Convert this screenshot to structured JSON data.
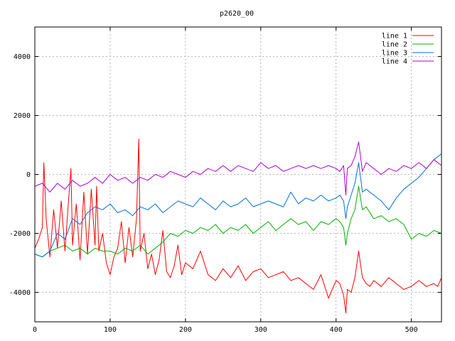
{
  "chart_data": {
    "type": "line",
    "title": "p2620_00",
    "xlabel": "",
    "ylabel": "",
    "xlim": [
      0,
      540
    ],
    "ylim": [
      -5000,
      5000
    ],
    "x_ticks": [
      0,
      100,
      200,
      300,
      400,
      500
    ],
    "y_ticks": [
      -4000,
      -2000,
      0,
      2000,
      4000
    ],
    "grid": true,
    "legend_position": "top-right",
    "series": [
      {
        "name": "line 1",
        "color": "#ff0000",
        "x": [
          0,
          5,
          10,
          12,
          15,
          20,
          25,
          30,
          35,
          40,
          45,
          48,
          50,
          55,
          60,
          65,
          70,
          75,
          80,
          82,
          85,
          90,
          95,
          100,
          105,
          110,
          115,
          120,
          125,
          130,
          135,
          138,
          140,
          145,
          150,
          155,
          160,
          165,
          170,
          175,
          180,
          185,
          190,
          195,
          200,
          210,
          220,
          230,
          240,
          250,
          260,
          270,
          280,
          290,
          300,
          310,
          320,
          330,
          340,
          350,
          360,
          370,
          380,
          390,
          400,
          405,
          410,
          413,
          415,
          420,
          425,
          430,
          435,
          440,
          445,
          450,
          460,
          470,
          480,
          490,
          500,
          510,
          520,
          530,
          535,
          540
        ],
        "y": [
          -2500,
          -2200,
          -1800,
          400,
          -1500,
          -2800,
          -1200,
          -2500,
          -900,
          -2600,
          -800,
          200,
          -2400,
          -1000,
          -2900,
          -600,
          -2700,
          -500,
          -2400,
          -400,
          -2600,
          -2000,
          -3000,
          -3400,
          -2800,
          -2500,
          -1600,
          -3000,
          -1800,
          -2800,
          -1500,
          1200,
          -2600,
          -2000,
          -3200,
          -2700,
          -3400,
          -2900,
          -1900,
          -3300,
          -3500,
          -3100,
          -2400,
          -3400,
          -3000,
          -3200,
          -2600,
          -3400,
          -3600,
          -3200,
          -3500,
          -3100,
          -3600,
          -3300,
          -3200,
          -3500,
          -3400,
          -3300,
          -3600,
          -3500,
          -3700,
          -3900,
          -3400,
          -4200,
          -3600,
          -3700,
          -4100,
          -4700,
          -3900,
          -4000,
          -3500,
          -2600,
          -3500,
          -3700,
          -3800,
          -3600,
          -3800,
          -3500,
          -3700,
          -3900,
          -3800,
          -3600,
          -3800,
          -3700,
          -3800,
          -3500
        ]
      },
      {
        "name": "line 2",
        "color": "#00b000",
        "x": [
          0,
          10,
          20,
          30,
          40,
          50,
          60,
          70,
          80,
          90,
          100,
          110,
          120,
          130,
          140,
          150,
          160,
          170,
          180,
          190,
          200,
          210,
          220,
          230,
          240,
          250,
          260,
          270,
          280,
          290,
          300,
          310,
          320,
          330,
          340,
          350,
          360,
          370,
          380,
          390,
          400,
          405,
          410,
          413,
          415,
          420,
          425,
          430,
          435,
          440,
          450,
          460,
          470,
          480,
          490,
          500,
          510,
          520,
          530,
          540
        ],
        "y": [
          -2700,
          -2800,
          -2600,
          -2500,
          -2400,
          -2600,
          -2500,
          -2700,
          -2500,
          -2600,
          -2600,
          -2700,
          -2500,
          -2600,
          -2400,
          -2700,
          -2500,
          -2300,
          -2000,
          -2100,
          -1900,
          -2000,
          -1800,
          -1900,
          -1700,
          -2000,
          -1800,
          -1900,
          -1700,
          -2000,
          -1800,
          -1600,
          -1900,
          -1700,
          -1500,
          -1700,
          -1600,
          -1900,
          -1600,
          -1700,
          -1500,
          -1600,
          -1800,
          -2400,
          -2000,
          -1500,
          -1200,
          -400,
          -1200,
          -1100,
          -1500,
          -1400,
          -1600,
          -1500,
          -1700,
          -2200,
          -2000,
          -2100,
          -1900,
          -2000
        ]
      },
      {
        "name": "line 3",
        "color": "#0070dd",
        "x": [
          0,
          10,
          20,
          30,
          40,
          50,
          60,
          70,
          80,
          90,
          100,
          110,
          120,
          130,
          140,
          150,
          160,
          170,
          180,
          190,
          200,
          210,
          220,
          230,
          240,
          250,
          260,
          270,
          280,
          290,
          300,
          310,
          320,
          330,
          340,
          350,
          360,
          370,
          380,
          390,
          400,
          405,
          410,
          413,
          415,
          420,
          425,
          430,
          435,
          440,
          450,
          460,
          470,
          480,
          490,
          500,
          510,
          520,
          530,
          540
        ],
        "y": [
          -2700,
          -2800,
          -2600,
          -2000,
          -2200,
          -1500,
          -1700,
          -1300,
          -1100,
          -1200,
          -1000,
          -1300,
          -1200,
          -1400,
          -1100,
          -1200,
          -1000,
          -1300,
          -1100,
          -900,
          -1000,
          -1100,
          -800,
          -1000,
          -1200,
          -900,
          -1100,
          -1000,
          -800,
          -1100,
          -1000,
          -900,
          -1000,
          -1100,
          -600,
          -1000,
          -800,
          -900,
          -700,
          -900,
          -800,
          -700,
          -900,
          -1500,
          -1100,
          -700,
          -300,
          400,
          -600,
          -500,
          -700,
          -900,
          -1200,
          -800,
          -500,
          -300,
          -100,
          200,
          500,
          700
        ]
      },
      {
        "name": "line 4",
        "color": "#b000d0",
        "x": [
          0,
          10,
          20,
          30,
          40,
          50,
          60,
          70,
          80,
          90,
          100,
          110,
          120,
          130,
          140,
          150,
          160,
          170,
          180,
          190,
          200,
          210,
          220,
          230,
          240,
          250,
          260,
          270,
          280,
          290,
          300,
          310,
          320,
          330,
          340,
          350,
          360,
          370,
          380,
          390,
          400,
          405,
          410,
          413,
          415,
          420,
          425,
          430,
          435,
          440,
          450,
          460,
          470,
          480,
          490,
          500,
          510,
          520,
          530,
          540
        ],
        "y": [
          -400,
          -300,
          -600,
          -300,
          -500,
          -200,
          -400,
          -300,
          -100,
          -300,
          0,
          -200,
          -100,
          -300,
          -100,
          -200,
          0,
          -100,
          100,
          0,
          -100,
          100,
          0,
          200,
          100,
          300,
          100,
          300,
          200,
          100,
          400,
          200,
          300,
          100,
          200,
          300,
          200,
          300,
          200,
          300,
          200,
          100,
          300,
          -700,
          200,
          300,
          600,
          1100,
          100,
          400,
          200,
          0,
          200,
          100,
          300,
          200,
          400,
          200,
          500,
          300
        ]
      }
    ]
  }
}
